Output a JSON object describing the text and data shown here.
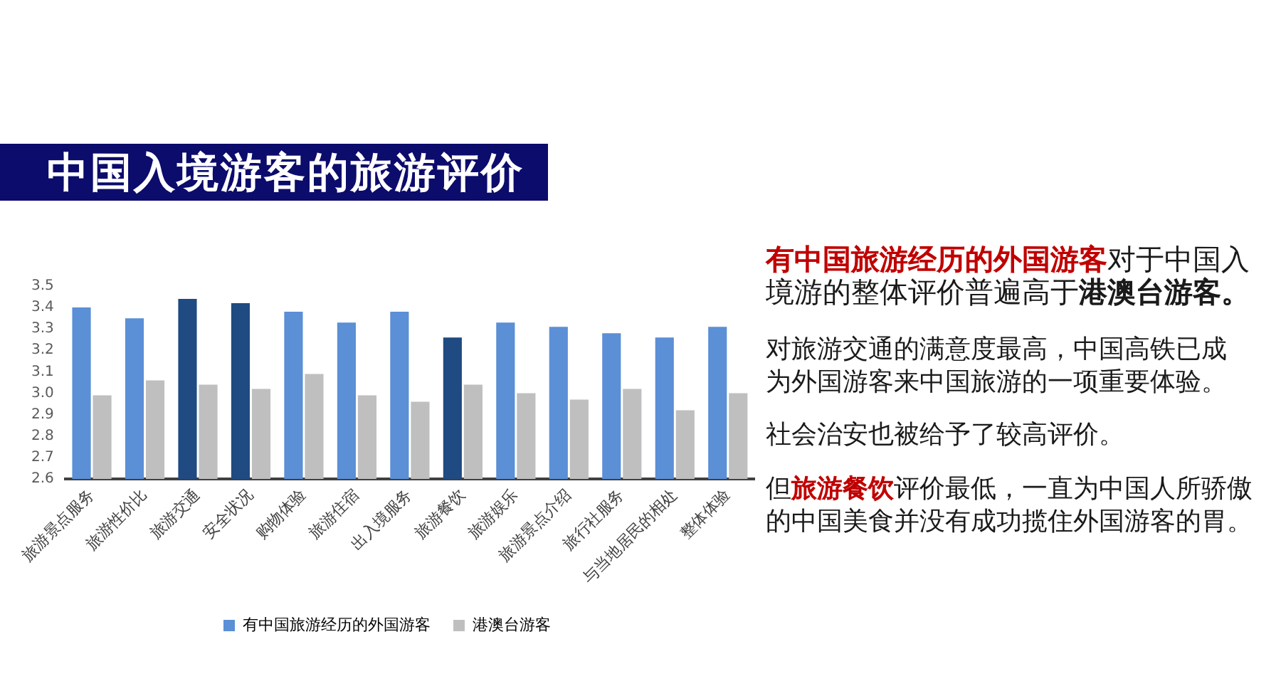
{
  "chart_data": {
    "type": "bar",
    "title": "中国入境游客的旅游评价",
    "categories": [
      "旅游景点服务",
      "旅游性价比",
      "旅游交通",
      "安全状况",
      "购物体验",
      "旅游住宿",
      "出入境服务",
      "旅游餐饮",
      "旅游娱乐",
      "旅游景点介绍",
      "旅行社服务",
      "与当地居民的相处",
      "整体体验"
    ],
    "series": [
      {
        "name": "有中国旅游经历的外国游客",
        "color": "#5b8fd6",
        "colors": [
          "#5b8fd6",
          "#5b8fd6",
          "#1f4a82",
          "#1f4a82",
          "#5b8fd6",
          "#5b8fd6",
          "#5b8fd6",
          "#1f4a82",
          "#5b8fd6",
          "#5b8fd6",
          "#5b8fd6",
          "#5b8fd6",
          "#5b8fd6"
        ],
        "values": [
          3.4,
          3.35,
          3.44,
          3.42,
          3.38,
          3.33,
          3.38,
          3.26,
          3.33,
          3.31,
          3.28,
          3.26,
          3.31
        ]
      },
      {
        "name": "港澳台游客",
        "color": "#bfbfbf",
        "values": [
          2.99,
          3.06,
          3.04,
          3.02,
          3.09,
          2.99,
          2.96,
          3.04,
          3.0,
          2.97,
          3.02,
          2.92,
          3.0
        ]
      }
    ],
    "ylim": [
      2.6,
      3.5
    ],
    "yticks": [
      2.6,
      2.7,
      2.8,
      2.9,
      {
        "value": 3.0,
        "label": "3.0"
      },
      3.1,
      3.2,
      3.3,
      3.4,
      3.5
    ],
    "grid": false,
    "legend": "bottom",
    "annotations": [
      "有中国旅游经历的外国游客",
      "对于中国入境游的整体评价普遍高于",
      "港澳台游客。",
      "对旅游交通的满意度最高，中国高铁已成为外国游客来中国旅游的一项重要体验。",
      "社会治安也被给予了较高评价。",
      "但",
      "旅游餐饮",
      "评价最低，一直为中国人所骄傲的中国美食并没有成功揽住外国游客的胃。"
    ]
  }
}
